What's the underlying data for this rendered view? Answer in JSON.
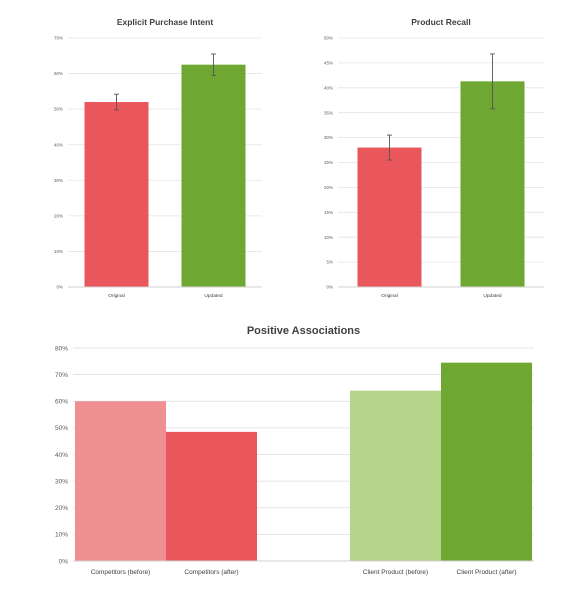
{
  "chart_data": [
    {
      "type": "bar",
      "title": "Explicit Purchase Intent",
      "categories": [
        "Original",
        "Updated"
      ],
      "values": [
        52,
        62.5
      ],
      "error": [
        2.2,
        3
      ],
      "colors": [
        "#e9565b",
        "#6ea832"
      ],
      "ylim": [
        0,
        70
      ],
      "yticks": [
        0,
        10,
        20,
        30,
        40,
        50,
        60,
        70
      ],
      "tick_suffix": "%",
      "grid": true,
      "xlabel": "",
      "ylabel": ""
    },
    {
      "type": "bar",
      "title": "Product Recall",
      "categories": [
        "Original",
        "Updated"
      ],
      "values": [
        28,
        41.3
      ],
      "error": [
        2.5,
        5.5
      ],
      "colors": [
        "#e9565b",
        "#6ea832"
      ],
      "ylim": [
        0,
        50
      ],
      "yticks": [
        0,
        5,
        10,
        15,
        20,
        25,
        30,
        35,
        40,
        45,
        50
      ],
      "tick_suffix": "%",
      "grid": true,
      "xlabel": "",
      "ylabel": ""
    },
    {
      "type": "bar",
      "title": "Positive Associations",
      "categories": [
        "Competitors (before)",
        "Competitors (after)",
        "Client Product (before)",
        "Client Product (after)"
      ],
      "values": [
        60,
        48.5,
        64,
        74.5
      ],
      "colors": [
        "#ef8f91",
        "#e9565b",
        "#b6d48a",
        "#6ea832"
      ],
      "ylim": [
        0,
        80
      ],
      "yticks": [
        0,
        10,
        20,
        30,
        40,
        50,
        60,
        70,
        80
      ],
      "tick_suffix": "%",
      "grid": true,
      "xlabel": "",
      "ylabel": ""
    }
  ]
}
